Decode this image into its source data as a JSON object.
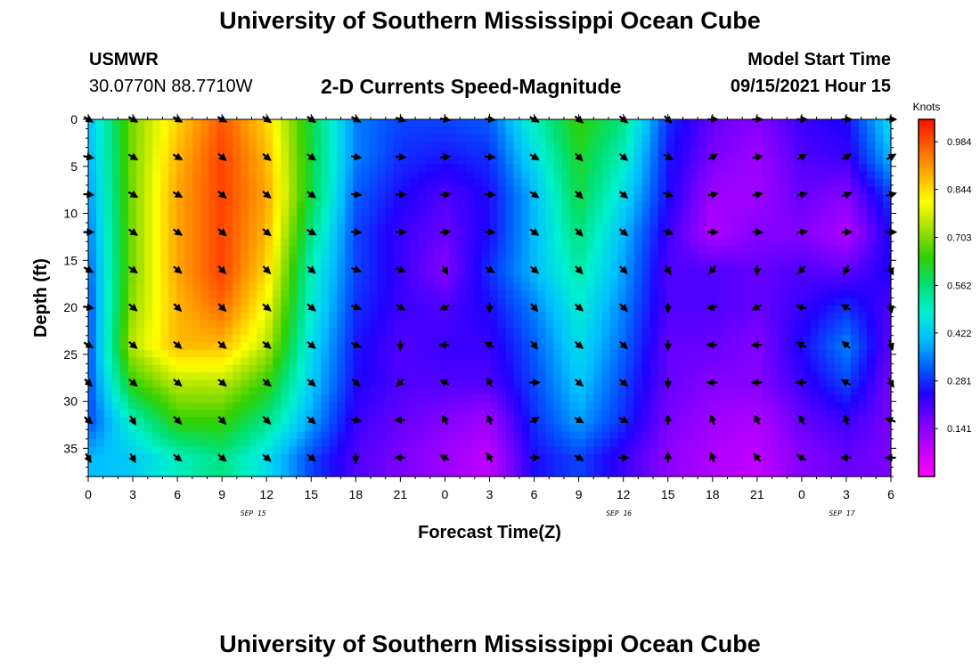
{
  "header": {
    "title": "University of Southern Mississippi Ocean Cube",
    "station": "USMWR",
    "coords": "30.0770N  88.7710W",
    "plot_title": "2-D Currents Speed-Magnitude",
    "model_start_label": "Model Start Time",
    "model_start_value": "09/15/2021 Hour 15"
  },
  "footer": {
    "title": "University of Southern Mississippi Ocean Cube"
  },
  "chart_data": {
    "type": "heatmap",
    "title": "2-D Currents Speed-Magnitude",
    "xlabel": "Forecast Time(Z)",
    "ylabel": "Depth (ft)",
    "x_tick_labels": [
      "0",
      "3",
      "6",
      "9",
      "12",
      "15",
      "18",
      "21",
      "0",
      "3",
      "6",
      "9",
      "12",
      "15",
      "18",
      "21",
      "0",
      "3",
      "6"
    ],
    "date_labels": [
      {
        "text": "SEP 15",
        "tick_index": 3.7
      },
      {
        "text": "SEP 16",
        "tick_index": 11.9
      },
      {
        "text": "SEP 17",
        "tick_index": 16.9
      }
    ],
    "y_ticks": [
      0,
      5,
      10,
      15,
      20,
      25,
      30,
      35
    ],
    "ylim": [
      0,
      38
    ],
    "y_inverted": true,
    "colorbar": {
      "unit": "Knots",
      "ticks": [
        "0.141",
        "0.281",
        "0.422",
        "0.562",
        "0.703",
        "0.844",
        "0.984"
      ],
      "min": 0.0,
      "max": 1.05,
      "colors": [
        "#ff00ff",
        "#c000ff",
        "#7a00ff",
        "#2000ff",
        "#0060ff",
        "#00c0ff",
        "#00f0d0",
        "#00e070",
        "#30d000",
        "#a0e000",
        "#ffff00",
        "#ffb000",
        "#ff6000",
        "#ff1000"
      ]
    },
    "speed_depths_ft": [
      0,
      4,
      8,
      12,
      16,
      20,
      24,
      28,
      32,
      36
    ],
    "speed_times_h": [
      0,
      3,
      6,
      9,
      12,
      15,
      18,
      21,
      24,
      27,
      30,
      33,
      36,
      39,
      42,
      45,
      48,
      51,
      54
    ],
    "speed_knots": [
      [
        0.4,
        0.7,
        0.85,
        0.98,
        0.85,
        0.6,
        0.35,
        0.3,
        0.3,
        0.32,
        0.5,
        0.65,
        0.55,
        0.28,
        0.18,
        0.15,
        0.22,
        0.25,
        0.45
      ],
      [
        0.38,
        0.7,
        0.88,
        1.0,
        0.88,
        0.6,
        0.35,
        0.28,
        0.26,
        0.28,
        0.45,
        0.62,
        0.5,
        0.26,
        0.16,
        0.12,
        0.2,
        0.22,
        0.4
      ],
      [
        0.36,
        0.7,
        0.9,
        1.0,
        0.9,
        0.6,
        0.32,
        0.25,
        0.2,
        0.25,
        0.4,
        0.6,
        0.45,
        0.25,
        0.12,
        0.12,
        0.18,
        0.15,
        0.3
      ],
      [
        0.34,
        0.7,
        0.9,
        1.0,
        0.88,
        0.55,
        0.3,
        0.22,
        0.18,
        0.25,
        0.4,
        0.56,
        0.4,
        0.22,
        0.1,
        0.15,
        0.15,
        0.1,
        0.25
      ],
      [
        0.32,
        0.7,
        0.9,
        1.0,
        0.85,
        0.5,
        0.3,
        0.22,
        0.15,
        0.28,
        0.4,
        0.52,
        0.38,
        0.2,
        0.2,
        0.18,
        0.2,
        0.18,
        0.25
      ],
      [
        0.3,
        0.72,
        0.88,
        0.96,
        0.8,
        0.48,
        0.28,
        0.22,
        0.2,
        0.25,
        0.35,
        0.48,
        0.35,
        0.2,
        0.2,
        0.18,
        0.22,
        0.28,
        0.2
      ],
      [
        0.3,
        0.75,
        0.88,
        0.88,
        0.75,
        0.45,
        0.26,
        0.2,
        0.22,
        0.22,
        0.32,
        0.45,
        0.33,
        0.18,
        0.18,
        0.15,
        0.25,
        0.35,
        0.18
      ],
      [
        0.3,
        0.65,
        0.75,
        0.75,
        0.65,
        0.42,
        0.25,
        0.2,
        0.2,
        0.2,
        0.3,
        0.42,
        0.3,
        0.18,
        0.15,
        0.15,
        0.22,
        0.3,
        0.16
      ],
      [
        0.3,
        0.5,
        0.65,
        0.65,
        0.55,
        0.38,
        0.22,
        0.18,
        0.15,
        0.12,
        0.28,
        0.38,
        0.28,
        0.16,
        0.12,
        0.1,
        0.18,
        0.22,
        0.16
      ],
      [
        0.4,
        0.42,
        0.5,
        0.55,
        0.45,
        0.3,
        0.2,
        0.16,
        0.12,
        0.08,
        0.25,
        0.3,
        0.22,
        0.14,
        0.1,
        0.08,
        0.15,
        0.18,
        0.16
      ]
    ],
    "vector_depths_ft": [
      0,
      4,
      8,
      12,
      16,
      20,
      24,
      28,
      32,
      36
    ],
    "vector_times_h": [
      0,
      3,
      6,
      9,
      12,
      15,
      18,
      21,
      24,
      27,
      30,
      33,
      36,
      39,
      42,
      45,
      48,
      51,
      54
    ],
    "vector_direction_deg": [
      [
        120,
        120,
        120,
        120,
        125,
        125,
        120,
        110,
        100,
        95,
        120,
        130,
        130,
        135,
        90,
        90,
        90,
        90,
        90
      ],
      [
        100,
        120,
        120,
        130,
        130,
        125,
        100,
        95,
        85,
        95,
        120,
        135,
        130,
        120,
        60,
        80,
        60,
        60,
        60
      ],
      [
        95,
        120,
        120,
        130,
        130,
        125,
        95,
        90,
        85,
        95,
        125,
        135,
        130,
        110,
        80,
        80,
        80,
        70,
        75
      ],
      [
        90,
        125,
        125,
        130,
        130,
        120,
        95,
        90,
        85,
        95,
        125,
        135,
        130,
        110,
        90,
        95,
        80,
        90,
        90
      ],
      [
        120,
        125,
        130,
        135,
        135,
        130,
        110,
        110,
        150,
        120,
        130,
        135,
        135,
        150,
        220,
        180,
        225,
        210,
        155
      ],
      [
        100,
        130,
        135,
        135,
        130,
        130,
        110,
        120,
        240,
        180,
        140,
        130,
        135,
        180,
        260,
        240,
        285,
        300,
        170
      ],
      [
        120,
        130,
        130,
        130,
        130,
        130,
        115,
        180,
        270,
        300,
        140,
        130,
        135,
        180,
        270,
        270,
        300,
        310,
        160
      ],
      [
        135,
        130,
        130,
        130,
        130,
        130,
        130,
        225,
        300,
        330,
        90,
        130,
        130,
        180,
        270,
        270,
        270,
        300,
        150
      ],
      [
        130,
        150,
        135,
        135,
        135,
        130,
        100,
        270,
        330,
        340,
        60,
        120,
        120,
        0,
        340,
        330,
        330,
        340,
        290
      ],
      [
        150,
        150,
        130,
        130,
        130,
        130,
        180,
        270,
        300,
        330,
        90,
        120,
        90,
        0,
        340,
        320,
        300,
        270,
        270
      ]
    ]
  }
}
